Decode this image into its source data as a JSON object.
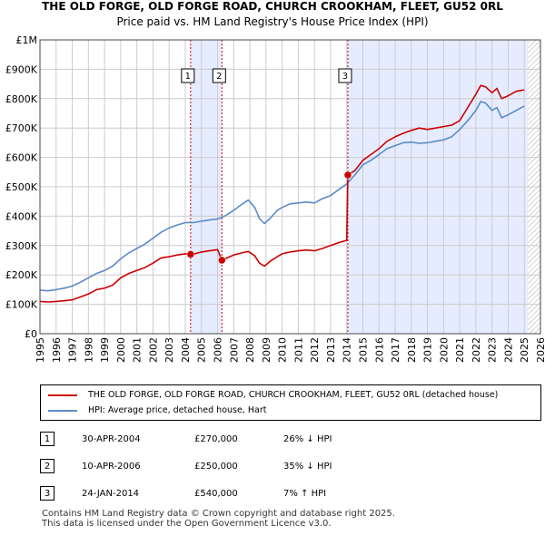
{
  "title": {
    "line1": "THE OLD FORGE, OLD FORGE ROAD, CHURCH CROOKHAM, FLEET, GU52 0RL",
    "line2": "Price paid vs. HM Land Registry's House Price Index (HPI)"
  },
  "colors": {
    "price_line": "#cc0000",
    "hpi_line": "#5b8ac9",
    "marker": "#cc0000",
    "shade": "#e6ecff",
    "grid": "#cccccc",
    "event_line": "#cc0000",
    "hatch": "#aaaaaa"
  },
  "chart_data": {
    "type": "line",
    "title": "Price paid vs. HM Land Registry's House Price Index (HPI)",
    "xlabel": "",
    "ylabel": "",
    "xlim": [
      1995,
      2026
    ],
    "ylim": [
      0,
      1000000
    ],
    "y_ticks": [
      0,
      100000,
      200000,
      300000,
      400000,
      500000,
      600000,
      700000,
      800000,
      900000,
      1000000
    ],
    "y_tick_labels": [
      "£0",
      "£100K",
      "£200K",
      "£300K",
      "£400K",
      "£500K",
      "£600K",
      "£700K",
      "£800K",
      "£900K",
      "£1M"
    ],
    "x_ticks": [
      1995,
      1996,
      1997,
      1998,
      1999,
      2000,
      2001,
      2002,
      2003,
      2004,
      2005,
      2006,
      2007,
      2008,
      2009,
      2010,
      2011,
      2012,
      2013,
      2014,
      2015,
      2016,
      2017,
      2018,
      2019,
      2020,
      2021,
      2022,
      2023,
      2024,
      2025,
      2026
    ],
    "x_tick_labels": [
      "1995",
      "1996",
      "1997",
      "1998",
      "1999",
      "2000",
      "2001",
      "2002",
      "2003",
      "2004",
      "2005",
      "2006",
      "2007",
      "2008",
      "2009",
      "2010",
      "2011",
      "2012",
      "2013",
      "2014",
      "2015",
      "2016",
      "2017",
      "2018",
      "2019",
      "2020",
      "2021",
      "2022",
      "2023",
      "2024",
      "2025",
      "2026"
    ],
    "grid": true,
    "legend_position": "below",
    "series": [
      {
        "name": "THE OLD FORGE, OLD FORGE ROAD, CHURCH CROOKHAM, FLEET, GU52 0RL (detached house)",
        "color": "#cc0000",
        "x": [
          1995.0,
          1995.5,
          1996.0,
          1996.5,
          1997.0,
          1997.5,
          1998.0,
          1998.5,
          1999.0,
          1999.5,
          2000.0,
          2000.5,
          2001.0,
          2001.5,
          2002.0,
          2002.5,
          2003.0,
          2003.5,
          2004.0,
          2004.33,
          2004.6,
          2005.0,
          2005.5,
          2006.0,
          2006.27,
          2006.6,
          2007.0,
          2007.5,
          2007.9,
          2008.3,
          2008.6,
          2008.9,
          2009.3,
          2009.7,
          2010.0,
          2010.5,
          2011.0,
          2011.5,
          2012.0,
          2012.5,
          2013.0,
          2013.5,
          2014.0,
          2014.07,
          2014.5,
          2015.0,
          2015.5,
          2016.0,
          2016.5,
          2017.0,
          2017.5,
          2018.0,
          2018.5,
          2019.0,
          2019.5,
          2020.0,
          2020.5,
          2021.0,
          2021.5,
          2022.0,
          2022.3,
          2022.6,
          2023.0,
          2023.3,
          2023.6,
          2024.0,
          2024.5,
          2025.0
        ],
        "y": [
          110000,
          108000,
          110000,
          112000,
          115000,
          125000,
          135000,
          150000,
          155000,
          165000,
          190000,
          205000,
          215000,
          225000,
          240000,
          258000,
          262000,
          268000,
          272000,
          270000,
          272000,
          278000,
          282000,
          286000,
          250000,
          258000,
          268000,
          275000,
          280000,
          265000,
          240000,
          230000,
          248000,
          262000,
          272000,
          278000,
          282000,
          285000,
          282000,
          290000,
          300000,
          310000,
          318000,
          540000,
          555000,
          590000,
          610000,
          630000,
          655000,
          670000,
          682000,
          692000,
          700000,
          695000,
          700000,
          705000,
          710000,
          725000,
          770000,
          815000,
          845000,
          840000,
          820000,
          835000,
          800000,
          810000,
          825000,
          830000
        ]
      },
      {
        "name": "HPI: Average price, detached house, Hart",
        "color": "#5b8ac9",
        "x": [
          1995.0,
          1995.5,
          1996.0,
          1996.5,
          1997.0,
          1997.5,
          1998.0,
          1998.5,
          1999.0,
          1999.5,
          2000.0,
          2000.5,
          2001.0,
          2001.5,
          2002.0,
          2002.5,
          2003.0,
          2003.5,
          2004.0,
          2004.5,
          2005.0,
          2005.5,
          2006.0,
          2006.5,
          2007.0,
          2007.5,
          2007.9,
          2008.3,
          2008.6,
          2008.9,
          2009.3,
          2009.7,
          2010.0,
          2010.5,
          2011.0,
          2011.5,
          2012.0,
          2012.5,
          2013.0,
          2013.5,
          2014.0,
          2014.5,
          2015.0,
          2015.5,
          2016.0,
          2016.5,
          2017.0,
          2017.5,
          2018.0,
          2018.5,
          2019.0,
          2019.5,
          2020.0,
          2020.5,
          2021.0,
          2021.5,
          2022.0,
          2022.3,
          2022.6,
          2023.0,
          2023.3,
          2023.6,
          2024.0,
          2024.5,
          2025.0
        ],
        "y": [
          148000,
          146000,
          150000,
          155000,
          162000,
          175000,
          190000,
          205000,
          215000,
          230000,
          255000,
          275000,
          290000,
          305000,
          325000,
          345000,
          360000,
          370000,
          378000,
          378000,
          383000,
          387000,
          390000,
          402000,
          420000,
          440000,
          455000,
          430000,
          392000,
          375000,
          395000,
          420000,
          430000,
          442000,
          445000,
          448000,
          445000,
          460000,
          470000,
          490000,
          510000,
          540000,
          575000,
          590000,
          610000,
          630000,
          640000,
          650000,
          652000,
          648000,
          650000,
          655000,
          660000,
          670000,
          695000,
          725000,
          760000,
          790000,
          785000,
          760000,
          770000,
          735000,
          745000,
          760000,
          775000
        ]
      }
    ],
    "events": [
      {
        "label": "1",
        "date": "30-APR-2004",
        "x": 2004.33,
        "price_text": "£270,000",
        "price": 270000,
        "hpi_text": "26% ↓ HPI"
      },
      {
        "label": "2",
        "date": "10-APR-2006",
        "x": 2006.27,
        "price_text": "£250,000",
        "price": 250000,
        "hpi_text": "35% ↓ HPI"
      },
      {
        "label": "3",
        "date": "24-JAN-2014",
        "x": 2014.07,
        "price_text": "£540,000",
        "price": 540000,
        "hpi_text": "7% ↑ HPI"
      }
    ],
    "shaded_ranges": [
      [
        2004.33,
        2006.27
      ],
      [
        2014.07,
        2025.2
      ]
    ],
    "hatch_range": [
      2025.2,
      2026
    ]
  },
  "legend": {
    "items": [
      {
        "label": "THE OLD FORGE, OLD FORGE ROAD, CHURCH CROOKHAM, FLEET, GU52 0RL (detached house)"
      },
      {
        "label": "HPI: Average price, detached house, Hart"
      }
    ]
  },
  "footer": {
    "line1": "Contains HM Land Registry data © Crown copyright and database right 2025.",
    "line2": "This data is licensed under the Open Government Licence v3.0."
  }
}
